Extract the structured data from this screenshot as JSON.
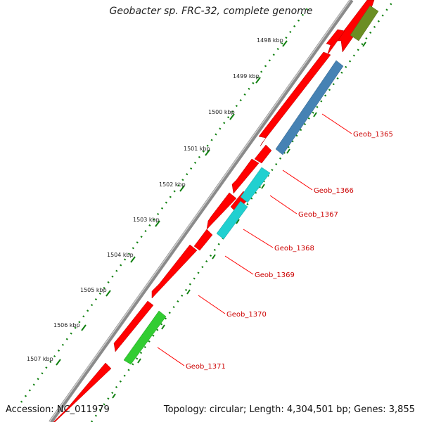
{
  "title": "Geobacter sp. FRC-32, complete genome",
  "footer": {
    "accession": "Accession: NC_011979",
    "summary": "Topology: circular; Length: 4,304,501 bp; Genes: 3,855"
  },
  "scale": {
    "ticks": [
      "1498 kbp",
      "1499 kbp",
      "1500 kbp",
      "1501 kbp",
      "1502 kbp",
      "1503 kbp",
      "1504 kbp",
      "1505 kbp",
      "1506 kbp",
      "1507 kbp"
    ]
  },
  "genes": {
    "labels": [
      "Geob_1365",
      "Geob_1366",
      "Geob_1367",
      "Geob_1368",
      "Geob_1369",
      "Geob_1370",
      "Geob_1371"
    ]
  },
  "colors": {
    "backbone": "#8a8a8a",
    "forward_strand": "#ff0000",
    "label_line": "#ff0000",
    "tick": "#108010",
    "gene_1365": "#4682b4",
    "gene_1367": "#20d0d0",
    "gene_1368": "#20d0d0",
    "gene_1371": "#32cd32",
    "gene_top": "#6b8e23"
  }
}
